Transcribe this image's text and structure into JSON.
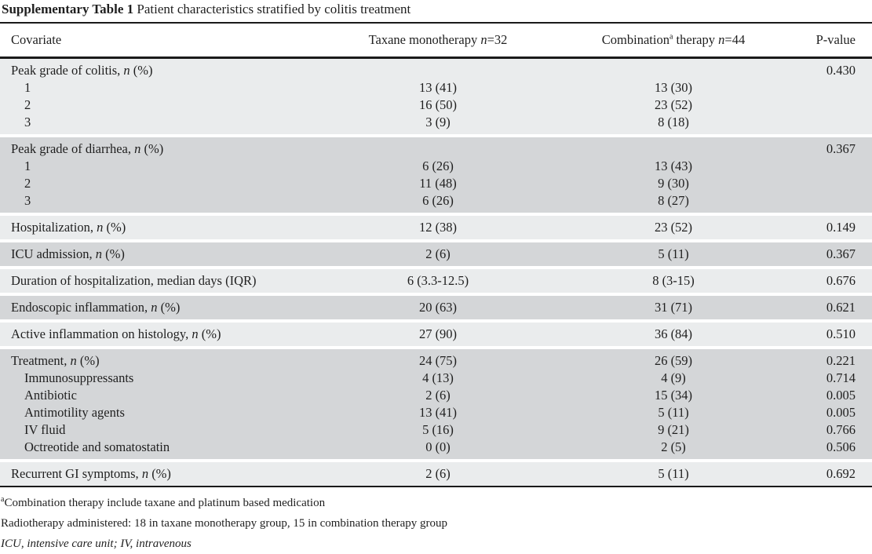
{
  "title": {
    "bold": "Supplementary Table 1",
    "rest": " Patient characteristics stratified by colitis treatment"
  },
  "table": {
    "columns": [
      {
        "key": "covariate",
        "label": "Covariate"
      },
      {
        "key": "taxane",
        "label": "Taxane monotherapy n=32"
      },
      {
        "key": "combination",
        "label": "Combination^a therapy n=44"
      },
      {
        "key": "pvalue",
        "label": "P-value"
      }
    ],
    "groups": [
      {
        "shade": "light",
        "rows": [
          {
            "label": "Peak grade of colitis, n (%)",
            "indent": false,
            "taxane": "",
            "combination": "",
            "pvalue": "0.430"
          },
          {
            "label": "1",
            "indent": true,
            "taxane": "13 (41)",
            "combination": "13 (30)",
            "pvalue": ""
          },
          {
            "label": "2",
            "indent": true,
            "taxane": "16 (50)",
            "combination": "23 (52)",
            "pvalue": ""
          },
          {
            "label": "3",
            "indent": true,
            "taxane": "3 (9)",
            "combination": "8 (18)",
            "pvalue": ""
          }
        ]
      },
      {
        "shade": "dark",
        "rows": [
          {
            "label": "Peak grade of diarrhea, n (%)",
            "indent": false,
            "taxane": "",
            "combination": "",
            "pvalue": "0.367"
          },
          {
            "label": "1",
            "indent": true,
            "taxane": "6 (26)",
            "combination": "13 (43)",
            "pvalue": ""
          },
          {
            "label": "2",
            "indent": true,
            "taxane": "11 (48)",
            "combination": "9 (30)",
            "pvalue": ""
          },
          {
            "label": "3",
            "indent": true,
            "taxane": "6 (26)",
            "combination": "8 (27)",
            "pvalue": ""
          }
        ]
      },
      {
        "shade": "light",
        "rows": [
          {
            "label": "Hospitalization, n (%)",
            "indent": false,
            "taxane": "12 (38)",
            "combination": "23 (52)",
            "pvalue": "0.149"
          }
        ]
      },
      {
        "shade": "dark",
        "rows": [
          {
            "label": "ICU admission, n (%)",
            "indent": false,
            "taxane": "2 (6)",
            "combination": "5 (11)",
            "pvalue": "0.367"
          }
        ]
      },
      {
        "shade": "light",
        "rows": [
          {
            "label": "Duration of hospitalization, median days (IQR)",
            "indent": false,
            "taxane": "6 (3.3-12.5)",
            "combination": "8 (3-15)",
            "pvalue": "0.676"
          }
        ]
      },
      {
        "shade": "dark",
        "rows": [
          {
            "label": "Endoscopic inflammation, n (%)",
            "indent": false,
            "taxane": "20 (63)",
            "combination": "31 (71)",
            "pvalue": "0.621"
          }
        ]
      },
      {
        "shade": "light",
        "rows": [
          {
            "label": "Active inflammation on histology, n (%)",
            "indent": false,
            "taxane": "27 (90)",
            "combination": "36 (84)",
            "pvalue": "0.510"
          }
        ]
      },
      {
        "shade": "dark",
        "rows": [
          {
            "label": "Treatment, n (%)",
            "indent": false,
            "taxane": "24 (75)",
            "combination": "26 (59)",
            "pvalue": "0.221"
          },
          {
            "label": "Immunosuppressants",
            "indent": true,
            "taxane": "4 (13)",
            "combination": "4 (9)",
            "pvalue": "0.714"
          },
          {
            "label": "Antibiotic",
            "indent": true,
            "taxane": "2 (6)",
            "combination": "15 (34)",
            "pvalue": "0.005"
          },
          {
            "label": "Antimotility agents",
            "indent": true,
            "taxane": "13 (41)",
            "combination": "5 (11)",
            "pvalue": "0.005"
          },
          {
            "label": "IV fluid",
            "indent": true,
            "taxane": "5 (16)",
            "combination": "9 (21)",
            "pvalue": "0.766"
          },
          {
            "label": "Octreotide and somatostatin",
            "indent": true,
            "taxane": "0 (0)",
            "combination": "2 (5)",
            "pvalue": "0.506"
          }
        ]
      },
      {
        "shade": "light",
        "rows": [
          {
            "label": "Recurrent GI symptoms, n (%)",
            "indent": false,
            "taxane": "2 (6)",
            "combination": "5 (11)",
            "pvalue": "0.692"
          }
        ]
      }
    ]
  },
  "footnotes": [
    {
      "text": "^aCombination therapy include taxane and platinum based medication",
      "italic": false
    },
    {
      "text": "Radiotherapy administered: 18 in taxane monotherapy group, 15 in combination therapy group",
      "italic": false
    },
    {
      "text": "ICU, intensive care unit; IV, intravenous",
      "italic": true
    }
  ],
  "colors": {
    "band_light": "#eaeced",
    "band_dark": "#d4d6d8",
    "rule": "#1a1a1a",
    "text": "#1f1f1f",
    "background": "#ffffff"
  }
}
